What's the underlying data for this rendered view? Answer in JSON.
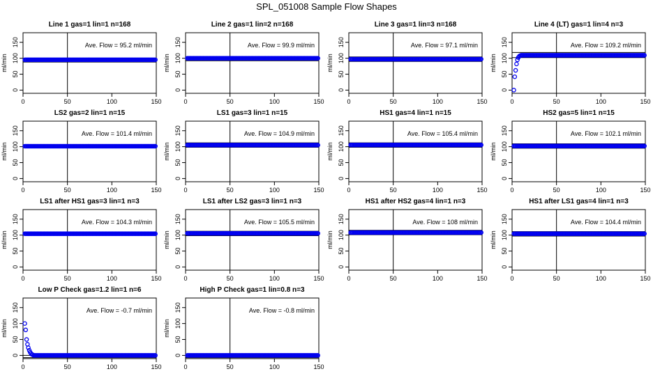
{
  "figure": {
    "title": "SPL_051008  Sample Flow Shapes",
    "annotation_prefix": "Ave. Flow = ",
    "annotation_unit": "ml/min"
  },
  "colors": {
    "points": "#0000ee",
    "axes": "#000000",
    "background": "#ffffff"
  },
  "chart_data": [
    {
      "type": "scatter",
      "title": "Line 1 gas=1 lin=1 n=168",
      "ylabel": "ml/min",
      "xlim": [
        0,
        150
      ],
      "ylim": [
        -10,
        180
      ],
      "xticks": [
        0,
        50,
        100,
        150
      ],
      "yticks": [
        0,
        50,
        100,
        150
      ],
      "vline": 50,
      "hlines": [
        95.2,
        88
      ],
      "ave_flow": "95.2",
      "profile": {
        "kind": "flat",
        "level": 95.2,
        "x_start": 2,
        "x_end": 149
      }
    },
    {
      "type": "scatter",
      "title": "Line 2 gas=1 lin=2 n=168",
      "ylabel": "ml/min",
      "xlim": [
        0,
        150
      ],
      "ylim": [
        -10,
        180
      ],
      "xticks": [
        0,
        50,
        100,
        150
      ],
      "yticks": [
        0,
        50,
        100,
        150
      ],
      "vline": 50,
      "hlines": [
        99.9,
        92
      ],
      "ave_flow": "99.9",
      "profile": {
        "kind": "flat",
        "level": 99.9,
        "x_start": 2,
        "x_end": 149
      }
    },
    {
      "type": "scatter",
      "title": "Line 3 gas=1 lin=3 n=168",
      "ylabel": "ml/min",
      "xlim": [
        0,
        150
      ],
      "ylim": [
        -10,
        180
      ],
      "xticks": [
        0,
        50,
        100,
        150
      ],
      "yticks": [
        0,
        50,
        100,
        150
      ],
      "vline": 50,
      "hlines": [
        104,
        90
      ],
      "ave_flow": "97.1",
      "profile": {
        "kind": "flat",
        "level": 97.1,
        "x_start": 2,
        "x_end": 149
      }
    },
    {
      "type": "scatter",
      "title": "Line 4 (LT) gas=1 lin=4 n=3",
      "ylabel": "ml/min",
      "xlim": [
        0,
        150
      ],
      "ylim": [
        -10,
        180
      ],
      "xticks": [
        0,
        50,
        100,
        150
      ],
      "yticks": [
        0,
        50,
        100,
        150
      ],
      "vline": 50,
      "hlines": [
        118,
        102
      ],
      "ave_flow": "109.2",
      "profile": {
        "kind": "rise",
        "level": 109.2,
        "x_start": 2,
        "x_end": 149,
        "early": [
          [
            2,
            0
          ],
          [
            3,
            42
          ],
          [
            4,
            62
          ],
          [
            5,
            82
          ],
          [
            6,
            95
          ],
          [
            7,
            102
          ],
          [
            8,
            106
          ],
          [
            9,
            108
          ]
        ]
      }
    },
    {
      "type": "scatter",
      "title": "LS2 gas=2 lin=1 n=15",
      "ylabel": "ml/min",
      "xlim": [
        0,
        150
      ],
      "ylim": [
        -10,
        180
      ],
      "xticks": [
        0,
        50,
        100,
        150
      ],
      "yticks": [
        0,
        50,
        100,
        150
      ],
      "vline": 50,
      "hlines": [
        101.4
      ],
      "ave_flow": "101.4",
      "profile": {
        "kind": "flat",
        "level": 101.4,
        "x_start": 2,
        "x_end": 149
      }
    },
    {
      "type": "scatter",
      "title": "LS1 gas=3 lin=1 n=15",
      "ylabel": "ml/min",
      "xlim": [
        0,
        150
      ],
      "ylim": [
        -10,
        180
      ],
      "xticks": [
        0,
        50,
        100,
        150
      ],
      "yticks": [
        0,
        50,
        100,
        150
      ],
      "vline": 50,
      "hlines": [
        112,
        98
      ],
      "ave_flow": "104.9",
      "profile": {
        "kind": "flat",
        "level": 104.9,
        "x_start": 2,
        "x_end": 149
      }
    },
    {
      "type": "scatter",
      "title": "HS1 gas=4 lin=1 n=15",
      "ylabel": "ml/min",
      "xlim": [
        0,
        150
      ],
      "ylim": [
        -10,
        180
      ],
      "xticks": [
        0,
        50,
        100,
        150
      ],
      "yticks": [
        0,
        50,
        100,
        150
      ],
      "vline": 50,
      "hlines": [
        112,
        98
      ],
      "ave_flow": "105.4",
      "profile": {
        "kind": "flat",
        "level": 105.4,
        "x_start": 2,
        "x_end": 149
      }
    },
    {
      "type": "scatter",
      "title": "HS2 gas=5 lin=1 n=15",
      "ylabel": "ml/min",
      "xlim": [
        0,
        150
      ],
      "ylim": [
        -10,
        180
      ],
      "xticks": [
        0,
        50,
        100,
        150
      ],
      "yticks": [
        0,
        50,
        100,
        150
      ],
      "vline": 50,
      "hlines": [
        109,
        95
      ],
      "ave_flow": "102.1",
      "profile": {
        "kind": "flat",
        "level": 102.1,
        "x_start": 2,
        "x_end": 149
      }
    },
    {
      "type": "scatter",
      "title": "LS1 after HS1 gas=3 lin=1 n=3",
      "ylabel": "ml/min",
      "xlim": [
        0,
        150
      ],
      "ylim": [
        -10,
        180
      ],
      "xticks": [
        0,
        50,
        100,
        150
      ],
      "yticks": [
        0,
        50,
        100,
        150
      ],
      "vline": 50,
      "hlines": [
        104.3
      ],
      "ave_flow": "104.3",
      "profile": {
        "kind": "flat",
        "level": 104.3,
        "x_start": 2,
        "x_end": 149
      }
    },
    {
      "type": "scatter",
      "title": "LS1 after LS2 gas=3 lin=1 n=3",
      "ylabel": "ml/min",
      "xlim": [
        0,
        150
      ],
      "ylim": [
        -10,
        180
      ],
      "xticks": [
        0,
        50,
        100,
        150
      ],
      "yticks": [
        0,
        50,
        100,
        150
      ],
      "vline": 50,
      "hlines": [
        112,
        98
      ],
      "ave_flow": "105.5",
      "profile": {
        "kind": "flat",
        "level": 105.5,
        "x_start": 2,
        "x_end": 149
      }
    },
    {
      "type": "scatter",
      "title": "HS1 after HS2 gas=4 lin=1 n=3",
      "ylabel": "ml/min",
      "xlim": [
        0,
        150
      ],
      "ylim": [
        -10,
        180
      ],
      "xticks": [
        0,
        50,
        100,
        150
      ],
      "yticks": [
        0,
        50,
        100,
        150
      ],
      "vline": 50,
      "hlines": [
        115,
        101
      ],
      "ave_flow": "108",
      "profile": {
        "kind": "flat",
        "level": 108,
        "x_start": 2,
        "x_end": 149
      }
    },
    {
      "type": "scatter",
      "title": "HS1 after LS1 gas=4 lin=1 n=3",
      "ylabel": "ml/min",
      "xlim": [
        0,
        150
      ],
      "ylim": [
        -10,
        180
      ],
      "xticks": [
        0,
        50,
        100,
        150
      ],
      "yticks": [
        0,
        50,
        100,
        150
      ],
      "vline": 50,
      "hlines": [
        111,
        97
      ],
      "ave_flow": "104.4",
      "profile": {
        "kind": "flat",
        "level": 104.4,
        "x_start": 2,
        "x_end": 149
      }
    },
    {
      "type": "scatter",
      "title": "Low P Check gas=1.2 lin=1 n=6",
      "ylabel": "ml/min",
      "xlim": [
        0,
        150
      ],
      "ylim": [
        -10,
        180
      ],
      "xticks": [
        0,
        50,
        100,
        150
      ],
      "yticks": [
        0,
        50,
        100,
        150
      ],
      "vline": 50,
      "hlines": [
        0,
        -7
      ],
      "ave_flow": "-0.7",
      "profile": {
        "kind": "decay",
        "level": 0,
        "x_start": 2,
        "x_end": 149,
        "early": [
          [
            2,
            100
          ],
          [
            3,
            80
          ],
          [
            4,
            50
          ],
          [
            5,
            35
          ],
          [
            6,
            24
          ],
          [
            7,
            16
          ],
          [
            8,
            10
          ],
          [
            9,
            6
          ],
          [
            10,
            3
          ],
          [
            11,
            2
          ]
        ]
      }
    },
    {
      "type": "scatter",
      "title": "High P Check gas=1 lin=0.8 n=3",
      "ylabel": "ml/min",
      "xlim": [
        0,
        150
      ],
      "ylim": [
        -10,
        180
      ],
      "xticks": [
        0,
        50,
        100,
        150
      ],
      "yticks": [
        0,
        50,
        100,
        150
      ],
      "vline": 50,
      "hlines": [
        0,
        -7
      ],
      "ave_flow": "-0.8",
      "profile": {
        "kind": "flat",
        "level": 0,
        "x_start": 2,
        "x_end": 149
      }
    }
  ]
}
